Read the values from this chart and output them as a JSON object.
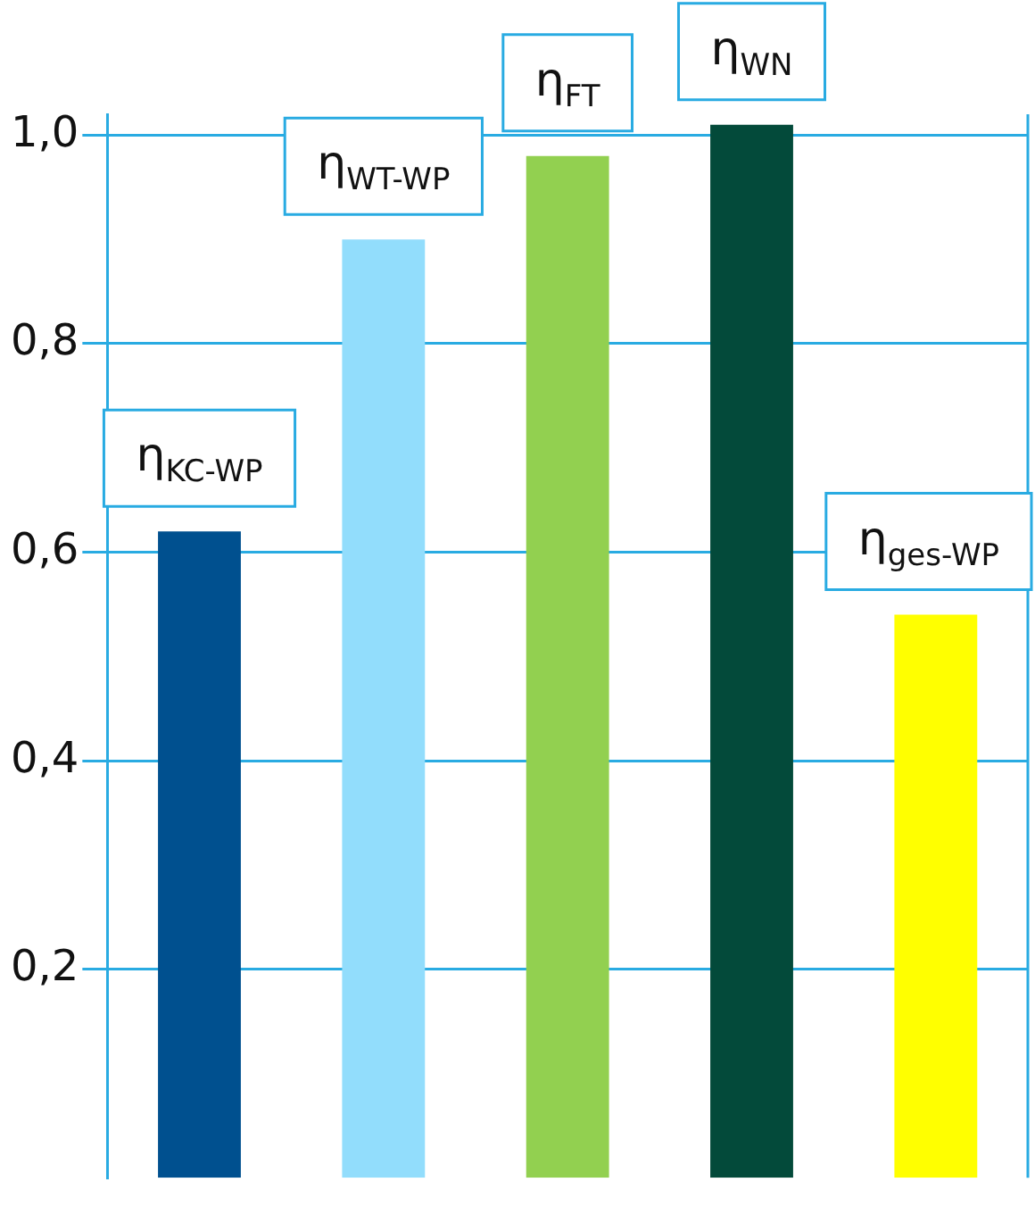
{
  "chart_data": {
    "type": "bar",
    "categories": [
      "η$_{KC-WP}$",
      "η$_{WT-WP}$",
      "η$_{FT}$",
      "η$_{WN}$",
      "η$_{ges-WP}$"
    ],
    "values": [
      0.62,
      0.9,
      0.98,
      1.01,
      0.54
    ],
    "colors": [
      "#00508f",
      "#92ddfc",
      "#92d050",
      "#034a3a",
      "#ffff00"
    ],
    "ylim": [
      0,
      1.02
    ],
    "yticks": [
      {
        "value": 0.2,
        "label": "0,2"
      },
      {
        "value": 0.4,
        "label": "0,4"
      },
      {
        "value": 0.6,
        "label": "0,6"
      },
      {
        "value": 0.8,
        "label": "0,8"
      },
      {
        "value": 1.0,
        "label": "1,0"
      }
    ],
    "grid": "y",
    "legend": false
  }
}
